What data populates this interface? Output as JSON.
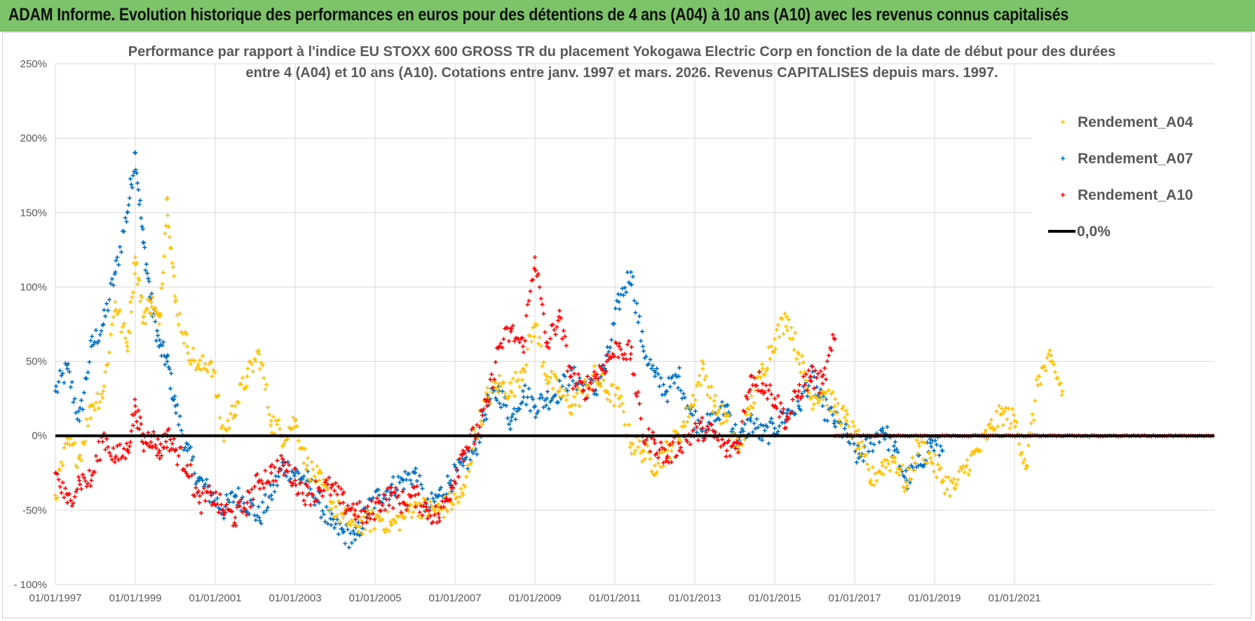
{
  "header": {
    "title": "ADAM Informe. Evolution historique des performances en euros pour des détentions de 4 ans (A04) à 10 ans (A10) avec les revenus connus capitalisés"
  },
  "colors": {
    "banner": "#7cc36a",
    "series_A04": "#ffc000",
    "series_A07": "#0070c0",
    "series_A10": "#ff0000",
    "zero_line": "#000000",
    "grid": "#d9d9d9"
  },
  "chart_data": {
    "type": "scatter",
    "title_line1": "Performance par rapport à l'indice EU STOXX 600 GROSS TR  du placement Yokogawa Electric Corp en fonction de la date de début pour des durées",
    "title_line2": "entre 4 (A04) et 10 ans (A10).  Cotations entre janv. 1997 et mars. 2026.  Revenus CAPITALISES depuis mars. 1997.",
    "xlabel": "",
    "ylabel": "",
    "x_range": [
      1997.0,
      2026.0
    ],
    "ylim": [
      -100,
      250
    ],
    "y_ticks": [
      -100,
      -50,
      0,
      50,
      100,
      150,
      200,
      250
    ],
    "y_tick_labels": [
      "- 100%",
      "-50%",
      "0%",
      "50%",
      "100%",
      "150%",
      "200%",
      "250%"
    ],
    "x_ticks": [
      1997,
      1999,
      2001,
      2003,
      2005,
      2007,
      2009,
      2011,
      2013,
      2015,
      2017,
      2019,
      2021
    ],
    "x_tick_labels": [
      "01/01/1997",
      "01/01/1999",
      "01/01/2001",
      "01/01/2003",
      "01/01/2005",
      "01/01/2007",
      "01/01/2009",
      "01/01/2011",
      "01/01/2013",
      "01/01/2015",
      "01/01/2017",
      "01/01/2019",
      "01/01/2021"
    ],
    "grid": true,
    "legend_position": "top-right",
    "series": [
      {
        "name": "Rendement_A04",
        "color": "#ffc000",
        "x": [
          1997.0,
          1997.3,
          1997.6,
          1997.9,
          1998.2,
          1998.5,
          1998.8,
          1999.0,
          1999.2,
          1999.4,
          1999.6,
          1999.8,
          2000.0,
          2000.3,
          2000.6,
          2000.9,
          2001.2,
          2001.5,
          2001.8,
          2002.1,
          2002.4,
          2002.7,
          2003.0,
          2003.3,
          2003.6,
          2003.9,
          2004.2,
          2004.5,
          2004.8,
          2005.1,
          2005.4,
          2005.7,
          2006.0,
          2006.3,
          2006.6,
          2006.9,
          2007.2,
          2007.5,
          2007.8,
          2008.1,
          2008.4,
          2008.7,
          2009.0,
          2009.3,
          2009.6,
          2009.9,
          2010.2,
          2010.5,
          2010.8,
          2011.1,
          2011.4,
          2011.7,
          2012.0,
          2012.3,
          2012.6,
          2012.9,
          2013.2,
          2013.5,
          2013.8,
          2014.1,
          2014.4,
          2014.7,
          2015.0,
          2015.3,
          2015.6,
          2015.9,
          2016.2,
          2016.5,
          2016.8,
          2017.1,
          2017.4,
          2017.7,
          2018.0,
          2018.3,
          2018.6,
          2018.9,
          2019.2,
          2019.5,
          2019.8,
          2020.1,
          2020.4,
          2020.7,
          2021.0,
          2021.3,
          2021.6,
          2021.9,
          2022.2
        ],
        "y": [
          -40,
          -5,
          -15,
          20,
          30,
          90,
          60,
          120,
          80,
          90,
          75,
          160,
          90,
          60,
          45,
          50,
          0,
          20,
          40,
          55,
          10,
          0,
          10,
          -20,
          -30,
          -45,
          -55,
          -60,
          -58,
          -55,
          -60,
          -55,
          -45,
          -50,
          -50,
          -45,
          -40,
          0,
          25,
          35,
          30,
          45,
          75,
          40,
          30,
          20,
          30,
          40,
          30,
          25,
          -5,
          -10,
          -20,
          -10,
          0,
          20,
          45,
          20,
          10,
          -10,
          20,
          45,
          65,
          80,
          55,
          25,
          30,
          20,
          10,
          -5,
          -30,
          -20,
          -15,
          -35,
          -5,
          -15,
          -30,
          -35,
          -20,
          -10,
          5,
          15,
          10,
          -20,
          40,
          50,
          30
        ]
      },
      {
        "name": "Rendement_A07",
        "color": "#0070c0",
        "x": [
          1997.0,
          1997.3,
          1997.6,
          1997.9,
          1998.2,
          1998.5,
          1998.8,
          1999.0,
          1999.2,
          1999.4,
          1999.6,
          1999.8,
          2000.0,
          2000.3,
          2000.6,
          2000.9,
          2001.2,
          2001.5,
          2001.8,
          2002.1,
          2002.4,
          2002.7,
          2003.0,
          2003.3,
          2003.6,
          2003.9,
          2004.2,
          2004.5,
          2004.8,
          2005.1,
          2005.4,
          2005.7,
          2006.0,
          2006.3,
          2006.6,
          2006.9,
          2007.2,
          2007.5,
          2007.8,
          2008.1,
          2008.4,
          2008.7,
          2009.0,
          2009.3,
          2009.6,
          2009.9,
          2010.2,
          2010.5,
          2010.8,
          2011.1,
          2011.4,
          2011.7,
          2012.0,
          2012.3,
          2012.6,
          2012.9,
          2013.2,
          2013.5,
          2013.8,
          2014.1,
          2014.4,
          2014.7,
          2015.0,
          2015.3,
          2015.6,
          2015.9,
          2016.2,
          2016.5,
          2016.8,
          2017.1,
          2017.4,
          2017.7,
          2018.0,
          2018.3,
          2018.6,
          2018.9,
          2019.2
        ],
        "y": [
          30,
          45,
          10,
          60,
          75,
          110,
          150,
          190,
          130,
          90,
          60,
          50,
          20,
          -10,
          -30,
          -40,
          -50,
          -40,
          -45,
          -55,
          -40,
          -20,
          -25,
          -30,
          -45,
          -60,
          -65,
          -70,
          -50,
          -40,
          -35,
          -30,
          -25,
          -50,
          -40,
          -30,
          -20,
          -10,
          20,
          30,
          10,
          30,
          20,
          25,
          30,
          40,
          35,
          30,
          50,
          90,
          110,
          60,
          40,
          30,
          40,
          15,
          5,
          10,
          20,
          -5,
          10,
          0,
          5,
          15,
          20,
          40,
          20,
          10,
          0,
          -15,
          -5,
          5,
          -10,
          -30,
          -20,
          -5,
          -10
        ]
      },
      {
        "name": "Rendement_A10",
        "color": "#ff0000",
        "x": [
          1997.0,
          1997.3,
          1997.6,
          1997.9,
          1998.2,
          1998.5,
          1998.8,
          1999.0,
          1999.2,
          1999.4,
          1999.6,
          1999.8,
          2000.0,
          2000.3,
          2000.6,
          2000.9,
          2001.2,
          2001.5,
          2001.8,
          2002.1,
          2002.4,
          2002.7,
          2003.0,
          2003.3,
          2003.6,
          2003.9,
          2004.2,
          2004.5,
          2004.8,
          2005.1,
          2005.4,
          2005.7,
          2006.0,
          2006.3,
          2006.6,
          2006.9,
          2007.2,
          2007.5,
          2007.8,
          2008.1,
          2008.4,
          2008.7,
          2009.0,
          2009.3,
          2009.6,
          2009.9,
          2010.2,
          2010.5,
          2010.8,
          2011.1,
          2011.4,
          2011.7,
          2012.0,
          2012.3,
          2012.6,
          2012.9,
          2013.2,
          2013.5,
          2013.8,
          2014.1,
          2014.4,
          2014.7,
          2015.0,
          2015.3,
          2015.6,
          2015.9,
          2016.2,
          2016.5
        ],
        "y": [
          -25,
          -45,
          -30,
          -30,
          0,
          -15,
          -10,
          20,
          -5,
          0,
          -10,
          0,
          -10,
          -20,
          -45,
          -40,
          -50,
          -55,
          -45,
          -30,
          -25,
          -20,
          -30,
          -40,
          -35,
          -35,
          -45,
          -50,
          -55,
          -45,
          -40,
          -45,
          -40,
          -50,
          -55,
          -35,
          -10,
          0,
          20,
          60,
          70,
          60,
          120,
          60,
          80,
          40,
          30,
          40,
          50,
          60,
          55,
          0,
          -5,
          -15,
          -5,
          0,
          5,
          0,
          -10,
          -5,
          40,
          35,
          25,
          10,
          30,
          40,
          35,
          65
        ]
      }
    ],
    "zero_line": {
      "label": "0,0%",
      "y": 0,
      "x_range": [
        1997.0,
        2026.0
      ]
    },
    "flat_zero_red_region": [
      2016.5,
      2026.0
    ]
  }
}
